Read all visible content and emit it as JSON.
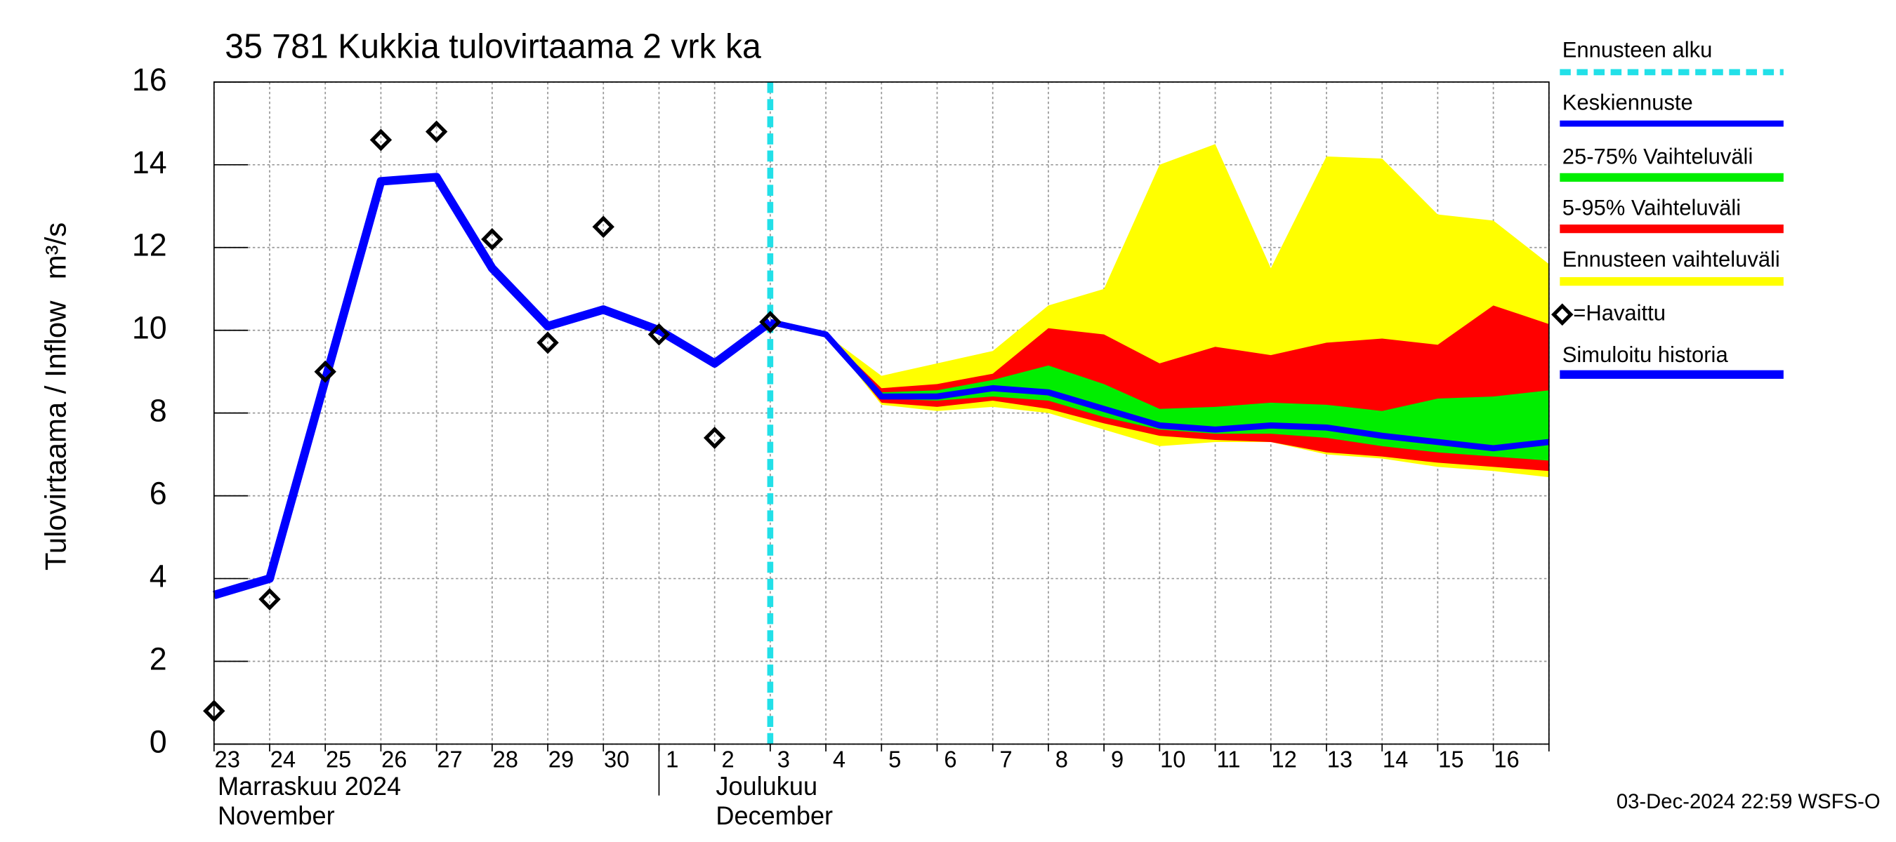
{
  "chart_data": {
    "type": "band-line",
    "title": "35 781 Kukkia tulovirtaama 2 vrk ka",
    "ylabel": "Tulovirtaama / Inflow",
    "yunit": "m³/s",
    "footer": "03-Dec-2024 22:59 WSFS-O",
    "months": [
      {
        "fi": "Marraskuu 2024",
        "en": "November"
      },
      {
        "fi": "Joulukuu",
        "en": "December"
      }
    ],
    "categories": [
      "23",
      "24",
      "25",
      "26",
      "27",
      "28",
      "29",
      "30",
      "1",
      "2",
      "3",
      "4",
      "5",
      "6",
      "7",
      "8",
      "9",
      "10",
      "11",
      "12",
      "13",
      "14",
      "15",
      "16",
      null
    ],
    "ylim": [
      0,
      16
    ],
    "yticks": [
      0,
      2,
      4,
      6,
      8,
      10,
      12,
      14,
      16
    ],
    "grid": true,
    "forecast_start": {
      "name": "Ennusteen alku",
      "color": "#22e0e8",
      "x": 10
    },
    "bands": [
      {
        "name": "Ennusteen vaihteluväli",
        "color": "#ffff00",
        "low": [
          null,
          null,
          null,
          null,
          null,
          null,
          null,
          null,
          null,
          null,
          10.2,
          9.9,
          8.2,
          8.05,
          8.15,
          8.0,
          7.6,
          7.2,
          7.3,
          7.3,
          7.0,
          6.9,
          6.7,
          6.6,
          6.45
        ],
        "high": [
          null,
          null,
          null,
          null,
          null,
          null,
          null,
          null,
          null,
          null,
          10.2,
          9.9,
          8.9,
          9.2,
          9.5,
          10.6,
          11.0,
          14.0,
          14.5,
          11.5,
          14.2,
          14.15,
          12.8,
          12.65,
          11.6
        ]
      },
      {
        "name": "5-95% Vaihteluväli",
        "color": "#ff0000",
        "low": [
          null,
          null,
          null,
          null,
          null,
          null,
          null,
          null,
          null,
          null,
          10.2,
          9.9,
          8.25,
          8.15,
          8.3,
          8.1,
          7.75,
          7.45,
          7.35,
          7.3,
          7.05,
          6.95,
          6.8,
          6.7,
          6.6
        ],
        "high": [
          null,
          null,
          null,
          null,
          null,
          null,
          null,
          null,
          null,
          null,
          10.2,
          9.9,
          8.6,
          8.7,
          8.95,
          10.05,
          9.9,
          9.2,
          9.6,
          9.4,
          9.7,
          9.8,
          9.65,
          10.6,
          10.15
        ]
      },
      {
        "name": "25-75% Vaihteluväli",
        "color": "#00ee00",
        "low": [
          null,
          null,
          null,
          null,
          null,
          null,
          null,
          null,
          null,
          null,
          10.2,
          9.9,
          8.35,
          8.3,
          8.4,
          8.3,
          7.9,
          7.6,
          7.5,
          7.5,
          7.4,
          7.2,
          7.05,
          6.95,
          6.85
        ],
        "high": [
          null,
          null,
          null,
          null,
          null,
          null,
          null,
          null,
          null,
          null,
          10.2,
          9.9,
          8.5,
          8.55,
          8.8,
          9.15,
          8.7,
          8.1,
          8.15,
          8.25,
          8.2,
          8.05,
          8.35,
          8.4,
          8.55
        ]
      }
    ],
    "series": [
      {
        "name": "Simuloitu historia",
        "color": "#0000ff",
        "style": "line",
        "values": [
          3.6,
          4.0,
          8.8,
          13.6,
          13.7,
          11.5,
          10.1,
          10.5,
          10.0,
          9.2,
          10.2,
          null,
          null,
          null,
          null,
          null,
          null,
          null,
          null,
          null,
          null,
          null,
          null,
          null,
          null
        ]
      },
      {
        "name": "Keskiennuste",
        "color": "#0000ff",
        "style": "line",
        "values": [
          null,
          null,
          null,
          null,
          null,
          null,
          null,
          null,
          null,
          null,
          10.2,
          9.9,
          8.4,
          8.4,
          8.6,
          8.5,
          8.1,
          7.7,
          7.6,
          7.7,
          7.65,
          7.45,
          7.3,
          7.15,
          7.3
        ]
      },
      {
        "name": "=Havaittu",
        "color": "#000000",
        "style": "marker",
        "values": [
          0.8,
          3.5,
          9.0,
          14.6,
          14.8,
          12.2,
          9.7,
          12.5,
          9.9,
          7.4,
          10.2,
          null,
          null,
          null,
          null,
          null,
          null,
          null,
          null,
          null,
          null,
          null,
          null,
          null,
          null
        ]
      }
    ]
  }
}
